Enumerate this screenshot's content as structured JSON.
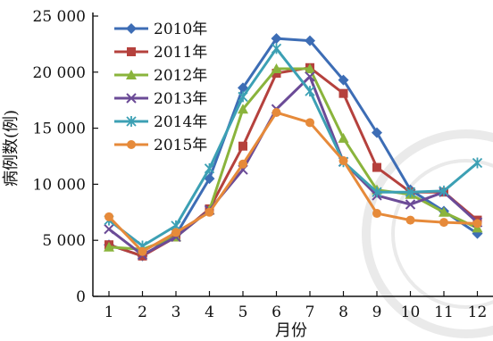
{
  "chart_data": {
    "type": "line",
    "title": "",
    "xlabel": "月份",
    "ylabel": "病例数(例)",
    "categories": [
      "1",
      "2",
      "3",
      "4",
      "5",
      "6",
      "7",
      "8",
      "9",
      "10",
      "11",
      "12"
    ],
    "ylim": [
      0,
      25000
    ],
    "yticks": [
      0,
      5000,
      10000,
      15000,
      20000,
      25000
    ],
    "ytick_labels": [
      "0",
      "5 000",
      "10 000",
      "15 000",
      "20 000",
      "25 000"
    ],
    "grid": false,
    "legend": "top-left",
    "series": [
      {
        "name": "2010年",
        "color": "#3d6db5",
        "marker": "diamond",
        "values": [
          4600,
          3600,
          5500,
          10500,
          18600,
          23000,
          22800,
          19300,
          14600,
          9500,
          7600,
          5600
        ]
      },
      {
        "name": "2011年",
        "color": "#b5413d",
        "marker": "square",
        "values": [
          4600,
          3600,
          5300,
          7800,
          13400,
          19900,
          20400,
          18100,
          11500,
          9300,
          9300,
          6800
        ]
      },
      {
        "name": "2012年",
        "color": "#8ab43c",
        "marker": "triangle",
        "values": [
          4400,
          4200,
          5300,
          7700,
          16700,
          20300,
          20300,
          14100,
          9500,
          9100,
          7500,
          6100
        ]
      },
      {
        "name": "2013年",
        "color": "#6b4b97",
        "marker": "x",
        "values": [
          6000,
          3700,
          5300,
          7700,
          11300,
          16700,
          19600,
          12000,
          9000,
          8200,
          9300,
          6600
        ]
      },
      {
        "name": "2014年",
        "color": "#3ca0b4",
        "marker": "star",
        "values": [
          6800,
          4500,
          6300,
          11400,
          17800,
          22100,
          18300,
          12000,
          9300,
          9300,
          9400,
          11900
        ]
      },
      {
        "name": "2015年",
        "color": "#e68a3a",
        "marker": "circle",
        "values": [
          7100,
          4000,
          5700,
          7500,
          11800,
          16400,
          15500,
          12100,
          7400,
          6800,
          6600,
          6500
        ]
      }
    ]
  }
}
